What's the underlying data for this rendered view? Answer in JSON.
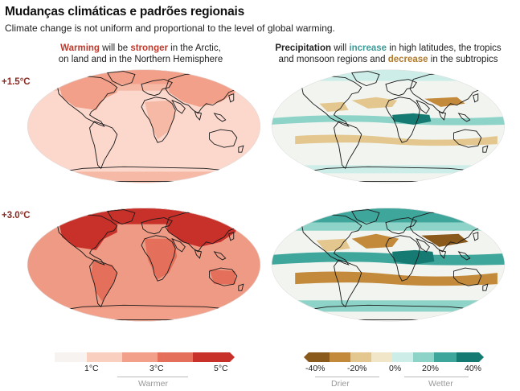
{
  "header": {
    "title": "Mudanças climáticas e padrões regionais",
    "subtitle": "Climate change is not uniform and proportional to the level of global warming."
  },
  "columns": {
    "temperature": {
      "w1": "Warming",
      "w2": " will be ",
      "w3": "stronger",
      "w4": " in the Arctic,",
      "line2": "on land and in the Northern Hemisphere"
    },
    "precipitation": {
      "w1": "Precipitation",
      "w2": " will ",
      "w3": "increase",
      "w4": " in high latitudes, the tropics",
      "line2a": "and monsoon regions and ",
      "line2b": "decrease",
      "line2c": " in the subtropics"
    }
  },
  "scenarios": [
    {
      "label": "+1.5°C"
    },
    {
      "label": "+3.0°C"
    }
  ],
  "legend": {
    "temperature": {
      "ticks": [
        "1°C",
        "3°C",
        "5°C"
      ],
      "axis_label": "Warmer",
      "colors": [
        "#f7f3f1",
        "#f9cfc0",
        "#f2a08a",
        "#e46f5a",
        "#c8302a"
      ]
    },
    "precipitation": {
      "ticks": [
        "-40%",
        "-20%",
        "0%",
        "20%",
        "40%"
      ],
      "drier_label": "Drier",
      "wetter_label": "Wetter",
      "colors": [
        "#8a5a1c",
        "#c28a3a",
        "#e3c78f",
        "#f2e6c9",
        "#f7f7f2",
        "#cdeee8",
        "#8ed3c8",
        "#3fa69c",
        "#157a72"
      ]
    }
  },
  "colors": {
    "land_outline": "#1a1a1a",
    "temp_base_15": "#fbd7cc",
    "temp_base_30": "#ee9a84",
    "precip_base": "#f2f4f0"
  }
}
